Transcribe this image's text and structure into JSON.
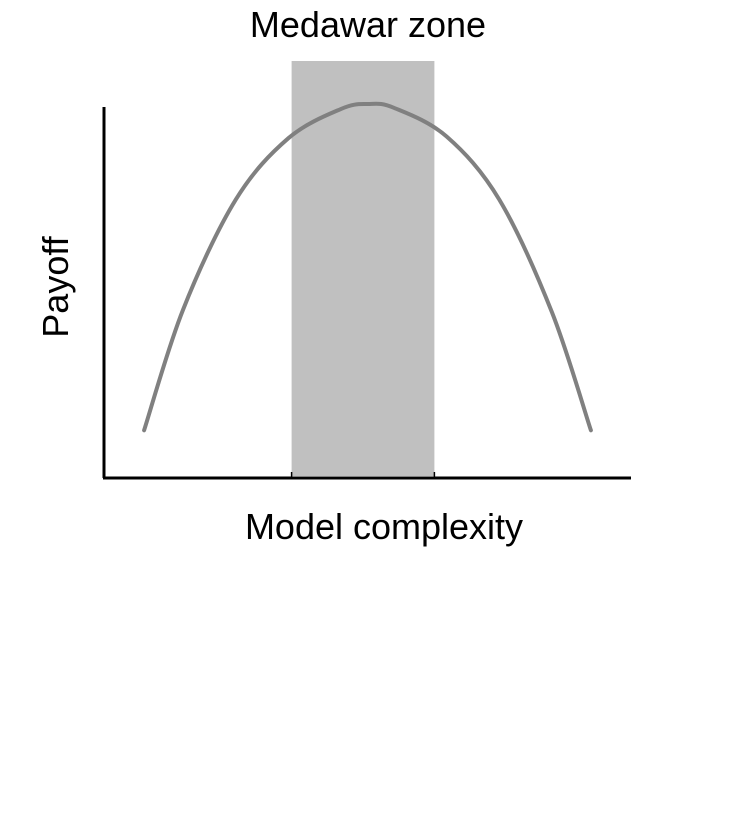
{
  "chart_data": {
    "type": "line",
    "title": "",
    "xlabel": "Model complexity",
    "ylabel": "Payoff",
    "annotations": [
      {
        "text": "Medawar zone",
        "type": "shaded-band",
        "x_range": [
          0.356,
          0.627
        ]
      }
    ],
    "x_axis_ticks": [
      0.356,
      0.627
    ],
    "xlim": [
      0,
      1
    ],
    "ylim": [
      0,
      1
    ],
    "grid": false,
    "legend": "none",
    "series": [
      {
        "x": [
          0.076,
          0.15,
          0.25,
          0.35,
          0.45,
          0.501,
          0.55,
          0.65,
          0.75,
          0.85,
          0.924
        ],
        "values": [
          0.065,
          0.411,
          0.726,
          0.902,
          0.986,
          1.0,
          0.989,
          0.907,
          0.726,
          0.403,
          0.065
        ]
      }
    ],
    "colors": {
      "curve": "#808080",
      "band": "#c0c0c0",
      "axis": "#000000"
    }
  }
}
